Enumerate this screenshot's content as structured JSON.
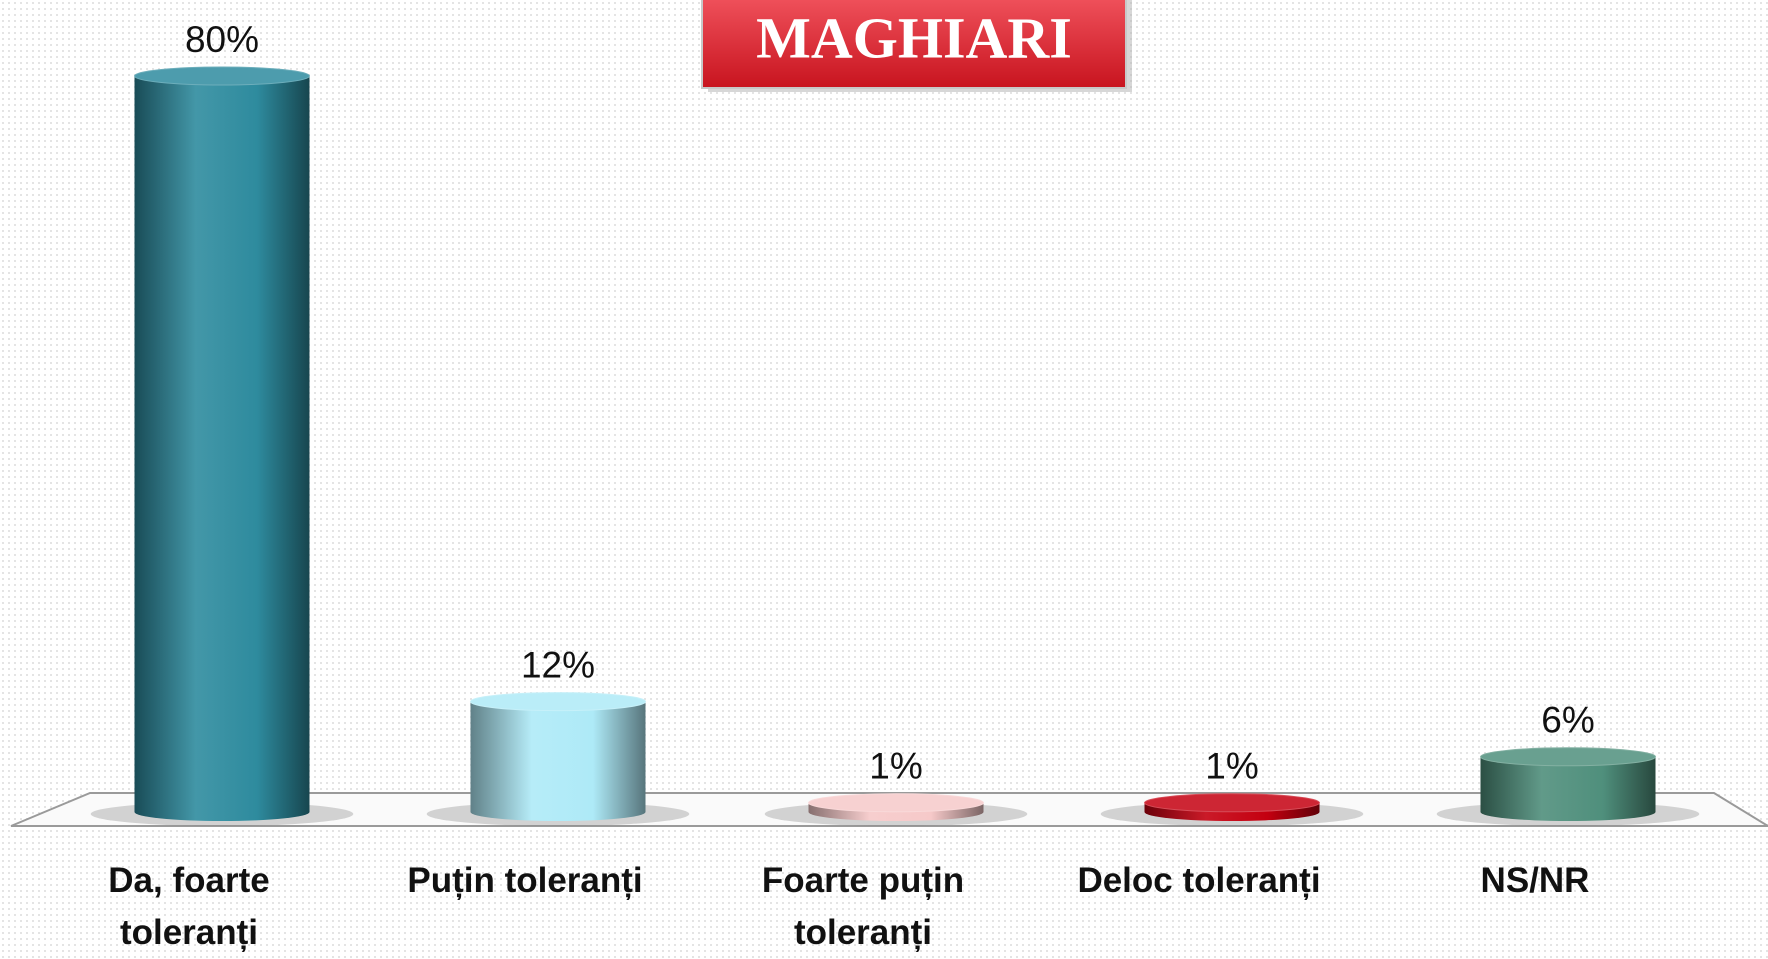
{
  "chart_data": {
    "type": "bar",
    "title": "MAGHIARI",
    "categories": [
      "Da, foarte toleranți",
      "Puțin toleranți",
      "Foarte puțin toleranți",
      "Deloc toleranți",
      "NS/NR"
    ],
    "values": [
      80,
      12,
      1,
      1,
      6
    ],
    "value_labels": [
      "80%",
      "12%",
      "1%",
      "1%",
      "6%"
    ],
    "colors": [
      "#2e8b9e",
      "#aeeaf7",
      "#f6c9c9",
      "#c40010",
      "#4f8f7c"
    ]
  }
}
